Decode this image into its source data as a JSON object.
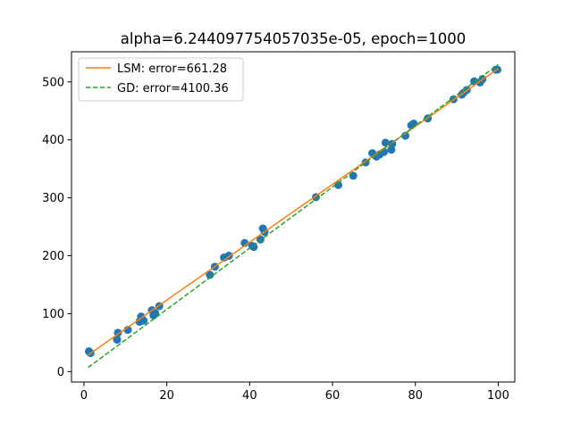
{
  "chart_data": {
    "type": "scatter",
    "title": "alpha=6.244097754057035e-05, epoch=1000",
    "xlabel": "",
    "ylabel": "",
    "xlim": [
      -3.0,
      104.0
    ],
    "ylim": [
      -18,
      552
    ],
    "xticks": [
      0,
      20,
      40,
      60,
      80,
      100
    ],
    "yticks": [
      0,
      100,
      200,
      300,
      400,
      500
    ],
    "grid": false,
    "legend_position": "top-left",
    "scatter_color": "#1f77b4",
    "points": [
      [
        1.2,
        35
      ],
      [
        1.6,
        32
      ],
      [
        8.0,
        55
      ],
      [
        8.2,
        67
      ],
      [
        10.6,
        72
      ],
      [
        13.4,
        86
      ],
      [
        13.8,
        95
      ],
      [
        14.4,
        88
      ],
      [
        16.4,
        106
      ],
      [
        16.8,
        97
      ],
      [
        17.2,
        101
      ],
      [
        18.2,
        113
      ],
      [
        30.4,
        167
      ],
      [
        31.6,
        181
      ],
      [
        33.8,
        197
      ],
      [
        35.0,
        200
      ],
      [
        38.8,
        222
      ],
      [
        40.6,
        217
      ],
      [
        41.0,
        215
      ],
      [
        42.6,
        228
      ],
      [
        43.2,
        247
      ],
      [
        43.6,
        241
      ],
      [
        56.0,
        301
      ],
      [
        61.4,
        322
      ],
      [
        65.0,
        338
      ],
      [
        68.0,
        361
      ],
      [
        69.6,
        377
      ],
      [
        70.6,
        371
      ],
      [
        71.4,
        375
      ],
      [
        72.4,
        379
      ],
      [
        72.8,
        395
      ],
      [
        74.2,
        383
      ],
      [
        74.4,
        393
      ],
      [
        77.6,
        407
      ],
      [
        79.0,
        425
      ],
      [
        79.6,
        428
      ],
      [
        83.0,
        437
      ],
      [
        89.2,
        470
      ],
      [
        91.2,
        478
      ],
      [
        91.6,
        481
      ],
      [
        92.4,
        486
      ],
      [
        94.2,
        501
      ],
      [
        95.6,
        499
      ],
      [
        96.2,
        505
      ],
      [
        99.4,
        521
      ],
      [
        99.8,
        521
      ]
    ],
    "series": [
      {
        "name": "LSM: error=661.28",
        "color": "#ff7f0e",
        "dash": "solid",
        "x": [
          1.0,
          100.0
        ],
        "y": [
          28.5,
          523.0
        ]
      },
      {
        "name": "GD: error=4100.36",
        "color": "#2ca02c",
        "dash": "dashed",
        "x": [
          1.0,
          100.0
        ],
        "y": [
          7.0,
          530.0
        ]
      }
    ]
  }
}
